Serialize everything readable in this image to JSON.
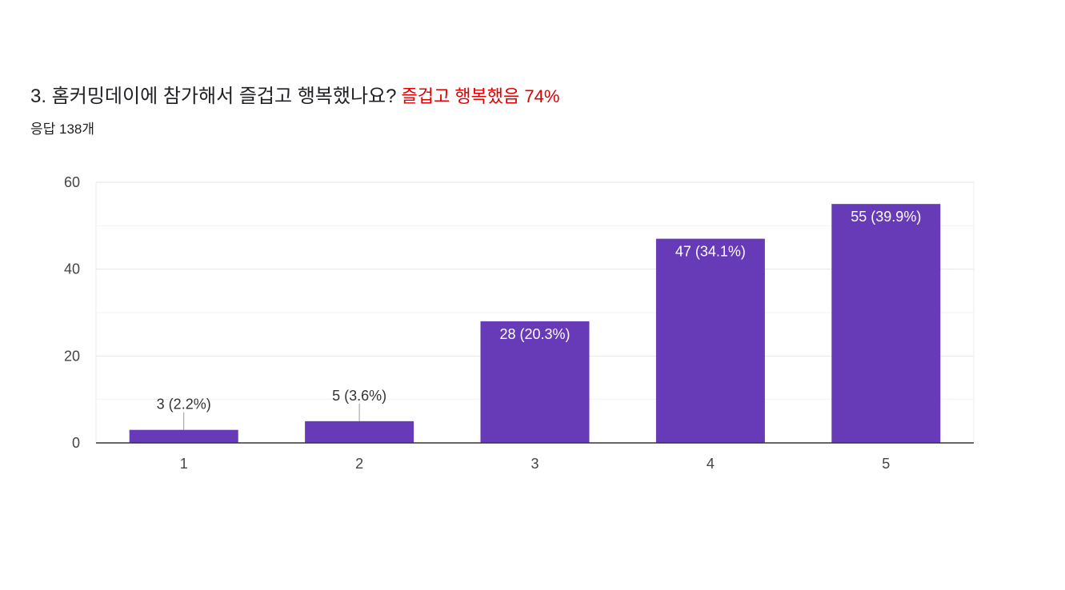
{
  "question": {
    "title": "3. 홈커밍데이에 참가해서 즐겁고 행복했나요?",
    "highlight": "즐겁고 행복했음 74%",
    "responses": "응답 138개"
  },
  "colors": {
    "bar": "#673ab7",
    "highlight": "#e00000"
  },
  "chart_data": {
    "type": "bar",
    "categories": [
      "1",
      "2",
      "3",
      "4",
      "5"
    ],
    "values": [
      3,
      5,
      28,
      47,
      55
    ],
    "labels": [
      "3 (2.2%)",
      "5 (3.6%)",
      "28 (20.3%)",
      "47 (34.1%)",
      "55 (39.9%)"
    ],
    "ylim": [
      0,
      60
    ],
    "yticks": [
      0,
      20,
      40,
      60
    ],
    "grid": true
  }
}
